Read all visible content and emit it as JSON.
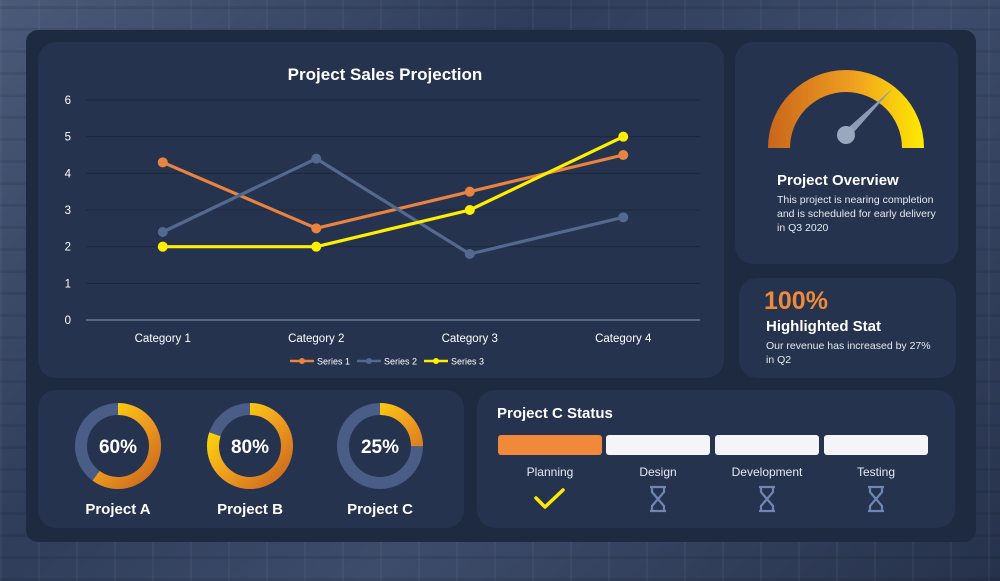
{
  "chart_data": {
    "type": "line",
    "title": "Project Sales Projection",
    "categories": [
      "Category 1",
      "Category 2",
      "Category 3",
      "Category 4"
    ],
    "ylim": [
      0,
      6
    ],
    "yticks": [
      "0",
      "1",
      "2",
      "3",
      "4",
      "5",
      "6"
    ],
    "series": [
      {
        "name": "Series 1",
        "values": [
          4.3,
          2.5,
          3.5,
          4.5
        ],
        "color": "#e8843f"
      },
      {
        "name": "Series 2",
        "values": [
          2.4,
          4.4,
          1.8,
          2.8
        ],
        "color": "#54698f"
      },
      {
        "name": "Series 3",
        "values": [
          2.0,
          2.0,
          3.0,
          5.0
        ],
        "color": "#ffef00"
      }
    ],
    "legend": "bottom",
    "grid": true
  },
  "overview": {
    "title": "Project Overview",
    "text": "This project is nearing completion and is scheduled for early delivery in Q3 2020",
    "gauge_value": 0.75
  },
  "stat": {
    "value": "100%",
    "title": "Highlighted Stat",
    "text": "Our revenue has increased by 27% in Q2"
  },
  "projects": [
    {
      "name": "Project A",
      "label": "60%",
      "value": 0.6
    },
    {
      "name": "Project B",
      "label": "80%",
      "value": 0.8
    },
    {
      "name": "Project C",
      "label": "25%",
      "value": 0.25
    }
  ],
  "status": {
    "title": "Project C Status",
    "stages": [
      {
        "label": "Planning",
        "state": "done",
        "icon": "checkmark-icon"
      },
      {
        "label": "Design",
        "state": "pending",
        "icon": "hourglass-icon"
      },
      {
        "label": "Development",
        "state": "pending",
        "icon": "hourglass-icon"
      },
      {
        "label": "Testing",
        "state": "pending",
        "icon": "hourglass-icon"
      }
    ]
  },
  "colors": {
    "orange": "#f08a3a",
    "yellow": "#ffef00",
    "blue": "#54698f",
    "panel": "#26334f"
  }
}
